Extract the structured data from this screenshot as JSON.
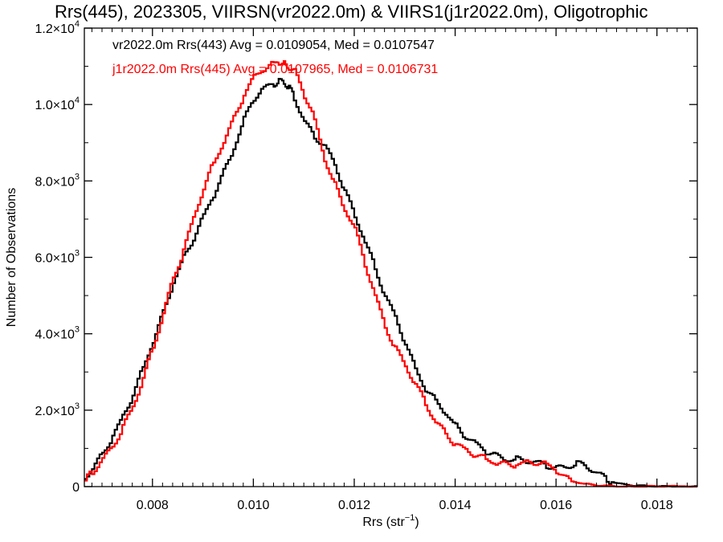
{
  "chart_data": {
    "type": "line",
    "title": "Rrs(445), 2023305, VIIRSN(vr2022.0m) & VIIRS1(j1r2022.0m), Oligotrophic",
    "xlabel_main": "Rrs (str",
    "xlabel_sup": "−1",
    "xlabel_end": ")",
    "ylabel": "Number of Observations",
    "xlim": [
      0.00665,
      0.0188
    ],
    "ylim": [
      0,
      12000
    ],
    "xticks": [
      {
        "value": 0.008,
        "label": "0.008"
      },
      {
        "value": 0.01,
        "label": "0.010"
      },
      {
        "value": 0.012,
        "label": "0.012"
      },
      {
        "value": 0.014,
        "label": "0.014"
      },
      {
        "value": 0.016,
        "label": "0.016"
      },
      {
        "value": 0.018,
        "label": "0.018"
      }
    ],
    "yticks": [
      {
        "value": 0,
        "mant": "0",
        "exp": ""
      },
      {
        "value": 2000,
        "mant": "2.0×10",
        "exp": "3"
      },
      {
        "value": 4000,
        "mant": "4.0×10",
        "exp": "3"
      },
      {
        "value": 6000,
        "mant": "6.0×10",
        "exp": "3"
      },
      {
        "value": 8000,
        "mant": "8.0×10",
        "exp": "3"
      },
      {
        "value": 10000,
        "mant": "1.0×10",
        "exp": "4"
      },
      {
        "value": 12000,
        "mant": "1.2×10",
        "exp": "4"
      }
    ],
    "legend_placement": "top-left",
    "series": [
      {
        "name": "vr2022.0m Rrs(443) Avg = 0.0109054, Med = 0.0107547",
        "color": "#000000",
        "x": [
          0.00665,
          0.0068,
          0.007,
          0.0072,
          0.0074,
          0.0076,
          0.0078,
          0.008,
          0.0082,
          0.0084,
          0.0086,
          0.0088,
          0.009,
          0.0092,
          0.0094,
          0.0096,
          0.0098,
          0.01,
          0.0102,
          0.0104,
          0.0105,
          0.0106,
          0.0107,
          0.0108,
          0.011,
          0.0112,
          0.0114,
          0.0116,
          0.0118,
          0.012,
          0.0122,
          0.0124,
          0.0126,
          0.0128,
          0.013,
          0.0132,
          0.0134,
          0.0136,
          0.0138,
          0.014,
          0.0142,
          0.0144,
          0.0146,
          0.0148,
          0.015,
          0.0152,
          0.0154,
          0.0156,
          0.0158,
          0.016,
          0.0162,
          0.0164,
          0.0166,
          0.0168,
          0.017,
          0.0172,
          0.0174,
          0.0176,
          0.0178,
          0.018,
          0.0184,
          0.0188
        ],
        "y": [
          150,
          450,
          850,
          1300,
          1750,
          2300,
          3000,
          3750,
          4500,
          5300,
          5900,
          6400,
          7000,
          7600,
          8200,
          8800,
          9500,
          10100,
          10400,
          10550,
          10650,
          10600,
          10450,
          10200,
          9600,
          9200,
          9000,
          8500,
          7800,
          7100,
          6500,
          5800,
          5100,
          4500,
          3800,
          3100,
          2600,
          2300,
          2000,
          1600,
          1300,
          1100,
          950,
          850,
          750,
          700,
          650,
          600,
          580,
          520,
          540,
          600,
          500,
          350,
          200,
          100,
          50,
          25,
          10,
          5,
          0,
          0
        ]
      },
      {
        "name": "j1r2022.0m Rrs(445) Avg = 0.0107965, Med = 0.0106731",
        "color": "#ff0000",
        "x": [
          0.00665,
          0.0068,
          0.007,
          0.0072,
          0.0074,
          0.0076,
          0.0078,
          0.008,
          0.0082,
          0.0084,
          0.0086,
          0.0088,
          0.009,
          0.0092,
          0.0094,
          0.0096,
          0.0098,
          0.01,
          0.0102,
          0.0104,
          0.0105,
          0.0106,
          0.0107,
          0.0108,
          0.011,
          0.0112,
          0.0114,
          0.0116,
          0.0118,
          0.012,
          0.0122,
          0.0124,
          0.0126,
          0.0128,
          0.013,
          0.0132,
          0.0134,
          0.0136,
          0.0138,
          0.014,
          0.0142,
          0.0144,
          0.0146,
          0.0148,
          0.015,
          0.0152,
          0.0154,
          0.0156,
          0.0158,
          0.016,
          0.0162,
          0.0164,
          0.0166,
          0.0168,
          0.017,
          0.0172,
          0.0174,
          0.0176,
          0.0178,
          0.018,
          0.0184,
          0.0188
        ],
        "y": [
          100,
          350,
          700,
          1050,
          1500,
          2000,
          2700,
          3550,
          4450,
          5400,
          6100,
          6900,
          7700,
          8400,
          9000,
          9600,
          10200,
          10650,
          10900,
          11050,
          11150,
          11100,
          10950,
          10900,
          10300,
          9700,
          8700,
          8000,
          7300,
          6800,
          5900,
          5100,
          4300,
          3700,
          3200,
          2700,
          2200,
          1750,
          1450,
          1150,
          950,
          800,
          700,
          650,
          620,
          600,
          600,
          600,
          560,
          480,
          250,
          120,
          60,
          30,
          15,
          8,
          5,
          2,
          0,
          0,
          0,
          0
        ]
      }
    ]
  }
}
